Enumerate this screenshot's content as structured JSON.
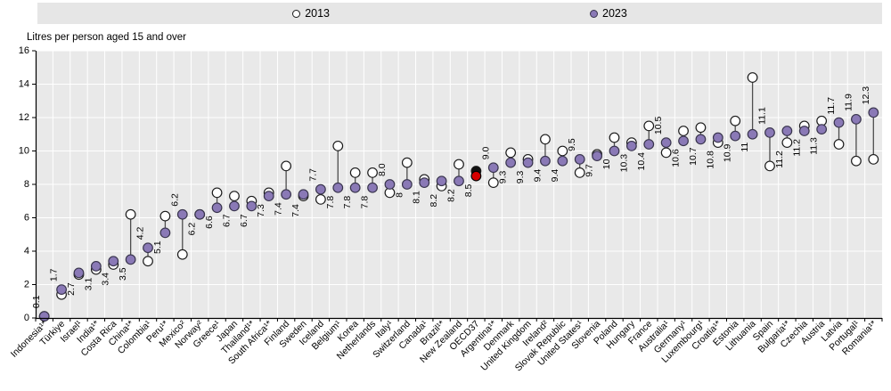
{
  "legend": {
    "items": [
      {
        "label": "2013",
        "marker": "open-circle"
      },
      {
        "label": "2023",
        "marker": "filled-circle"
      }
    ],
    "background": "#e6e6e6"
  },
  "colors": {
    "purple": "#8a79b6",
    "purple_stroke": "#38344c",
    "white_dot": "#ffffff",
    "dot_stroke": "#1a1a1a",
    "highlight_2013": "#111111",
    "highlight_2023": "#d40000",
    "connector": "#4d4d4d",
    "plot_bg": "#e9e9e9",
    "grid": "#ffffff",
    "axis": "#000000"
  },
  "chart_data": {
    "type": "scatter",
    "title": "",
    "ylabel": "Litres per person aged 15 and over",
    "xlabel": "",
    "ylim": [
      0,
      16
    ],
    "y_ticks": [
      0,
      2,
      4,
      6,
      8,
      10,
      12,
      14,
      16
    ],
    "grid": "white horizontal gridlines every 2 units and white vertical column separators on grey plot background",
    "legend_position": "top",
    "highlight_category": "OECD37",
    "categories": [
      "Indonesia¹*",
      "Türkiye",
      "Israel¹",
      "India¹*",
      "Costa Rica",
      "China¹*",
      "Colombia¹",
      "Peru¹*",
      "Mexico²",
      "Norway²",
      "Greece¹",
      "Japan",
      "Thailand¹*",
      "South Africa¹*",
      "Finland",
      "Sweden",
      "Iceland",
      "Belgium¹",
      "Korea",
      "Netherlands",
      "Italy¹",
      "Switzerland",
      "Canada¹",
      "Brazil¹*",
      "New Zealand",
      "OECD37",
      "Argentina¹*",
      "Denmark",
      "United Kingdom",
      "Ireland²",
      "Slovak Republic",
      "United States¹",
      "Slovenia",
      "Poland",
      "Hungary",
      "France",
      "Australia¹",
      "Germany¹",
      "Luxembourg¹",
      "Croatia¹*",
      "Estonia",
      "Lithuania",
      "Spain",
      "Bulgaria¹*",
      "Czechia",
      "Austria",
      "Latvia",
      "Portugal¹",
      "Romania¹*"
    ],
    "series": [
      {
        "name": "2013",
        "values": [
          0.1,
          1.4,
          2.6,
          2.9,
          3.2,
          6.2,
          3.4,
          6.1,
          3.8,
          6.2,
          7.5,
          7.3,
          7.0,
          7.5,
          9.1,
          7.3,
          7.1,
          10.3,
          8.7,
          8.7,
          7.5,
          9.3,
          8.3,
          7.9,
          9.2,
          8.8,
          8.1,
          9.9,
          9.5,
          10.7,
          10.0,
          8.7,
          9.8,
          10.8,
          10.5,
          11.5,
          9.9,
          11.2,
          11.4,
          10.5,
          11.8,
          14.4,
          9.1,
          10.5,
          11.5,
          11.8,
          10.4,
          9.4,
          9.5
        ]
      },
      {
        "name": "2023",
        "values": [
          0.1,
          1.7,
          2.7,
          3.1,
          3.4,
          3.5,
          4.2,
          5.1,
          6.2,
          6.2,
          6.6,
          6.7,
          6.7,
          7.3,
          7.4,
          7.4,
          7.7,
          7.8,
          7.8,
          7.8,
          8.0,
          8.0,
          8.1,
          8.2,
          8.2,
          8.5,
          9.0,
          9.3,
          9.3,
          9.4,
          9.4,
          9.5,
          9.7,
          10.0,
          10.3,
          10.4,
          10.5,
          10.6,
          10.7,
          10.8,
          10.9,
          11.0,
          11.1,
          11.2,
          11.2,
          11.3,
          11.7,
          11.9,
          12.3
        ],
        "labels": [
          "0.1",
          "1.7",
          "2.7",
          "3.1",
          "3.4",
          "3.5",
          "4.2",
          "5.1",
          "6.2",
          "6.2",
          "6.6",
          "6.7",
          "6.7",
          "7.3",
          "7.4",
          "7.4",
          "7.7",
          "7.8",
          "7.8",
          "7.8",
          "8.0",
          "8",
          "8.1",
          "8.2",
          "8.2",
          "8.5",
          "9.0",
          "9.3",
          "9.3",
          "9.4",
          "9.4",
          "9.5",
          "9.7",
          "10",
          "10.3",
          "10.4",
          "10.5",
          "10.6",
          "10.7",
          "10.8",
          "10.9",
          "11",
          "11.1",
          "11.2",
          "11.2",
          "11.3",
          "11.7",
          "11.9",
          "12.3"
        ],
        "label_side": [
          "a",
          "a",
          "b",
          "b",
          "b",
          "b",
          "a",
          "b",
          "a",
          "b",
          "b",
          "b",
          "b",
          "b",
          "b",
          "b",
          "a",
          "b",
          "b",
          "b",
          "a",
          "b",
          "b",
          "b",
          "b",
          "b",
          "a",
          "b",
          "b",
          "b",
          "b",
          "a",
          "b",
          "b",
          "b",
          "b",
          "a",
          "b",
          "b",
          "b",
          "b",
          "b",
          "a",
          "b",
          "b",
          "b",
          "a",
          "a",
          "a"
        ]
      }
    ]
  }
}
